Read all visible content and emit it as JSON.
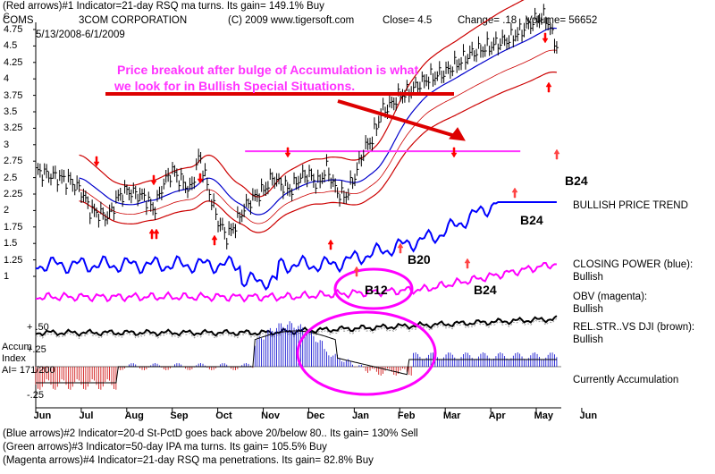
{
  "header": {
    "line1": "(Red arrows)#1 Indicator=21-day RSQ ma turns. Its gain= 149.1% Buy",
    "symbol": "COMS",
    "company": "3COM CORPORATION",
    "copyright": "(C) 2009 www.tigersoft.com",
    "close_label": "Close= 4.5",
    "change_label": "Change= .18",
    "volume_label": "Volume= 56652",
    "date_range": "5/13/2008-6/1/2009",
    "corner_mark": "C"
  },
  "annotation": {
    "line1": "Price breakout after bulge of Accumulation is what",
    "line2": "we look for in Bullish Special Situations."
  },
  "labels": {
    "b24_top": "B24",
    "b24_mid": "B24",
    "b24_low": "B24",
    "b20": "B20",
    "b12": "B12",
    "bullish_price_trend": "BULLISH PRICE TREND",
    "closing_power": "CLOSING POWER (blue):",
    "closing_power_state": "Bullish",
    "obv": "OBV (magenta):",
    "obv_state": "Bullish",
    "relstr": "REL.STR..VS DJI (brown):",
    "relstr_state": "Bullish",
    "accum_title1": "Accum",
    "accum_title2": "Index",
    "accum_ai": "AI= 171/200",
    "accum_p50": "+ .50",
    "accum_p25": "+.25",
    "accum_m25": "-.25",
    "currently_accum": "Currently Accumulation"
  },
  "footer": {
    "line1": "(Blue arrows)#2 Indicator=20-d St-PctD goes back above 20/below 80.. Its gain= 130% Sell",
    "line2": "(Green arrows)#3 Indicator=50-day IPA ma turns. Its gain= 105.5% Buy",
    "line3": "(Magenta arrows)#4 Indicator=21-day RSQ ma penetrations. Its gain= 82.8% Buy"
  },
  "colors": {
    "price": "#000000",
    "bands": "#cc0000",
    "ma": "#0000cc",
    "closing_power": "#0000ff",
    "obv": "#ff00ff",
    "relstr": "#663300",
    "resistance": "#ff33ff",
    "accum_pos": "#0000cc",
    "accum_neg": "#cc0000",
    "arrow": "#ff0000"
  },
  "chart_data": {
    "type": "line",
    "yticks": [
      "4.75",
      "4.5",
      "4.25",
      "4",
      "3.75",
      "3.5",
      "3.25",
      "3",
      "2.75",
      "2.5",
      "2.25",
      "2",
      "1.75",
      "1.5",
      "1.25",
      "1"
    ],
    "ylim": [
      1,
      4.75
    ],
    "months": [
      "Jun",
      "Jul",
      "Aug",
      "Sep",
      "Oct",
      "Nov",
      "Dec",
      "Jan",
      "Feb",
      "Mar",
      "Apr",
      "May",
      "Jun"
    ],
    "resistance_level": 2.9,
    "series": [
      {
        "name": "",
        "x": [
          0.0,
          0.25,
          0.5,
          0.75,
          1.0,
          1.2,
          1.4,
          1.6,
          1.8,
          2.0,
          2.2,
          2.4,
          2.6,
          2.8,
          3.0,
          3.2,
          3.4,
          3.6,
          3.8,
          4.0,
          4.2,
          4.4,
          4.6,
          4.8,
          5.0,
          5.2,
          5.4,
          5.6,
          5.8,
          6.0,
          6.2,
          6.4,
          6.6,
          6.8,
          7.0,
          7.2,
          7.4,
          7.6,
          7.8,
          8.0,
          8.2,
          8.4,
          8.6,
          8.8,
          9.0,
          9.2,
          9.4,
          9.6,
          9.8,
          10.0,
          10.2,
          10.4,
          10.6,
          10.8,
          11.0,
          11.2,
          11.45
        ],
        "values": [
          2.6,
          2.55,
          2.5,
          2.45,
          2.3,
          2.0,
          1.95,
          1.9,
          2.2,
          2.3,
          2.25,
          2.2,
          2.0,
          2.4,
          2.6,
          2.45,
          2.3,
          2.85,
          2.3,
          1.85,
          1.6,
          1.8,
          2.05,
          2.2,
          2.3,
          2.5,
          2.4,
          2.3,
          2.5,
          2.55,
          2.4,
          2.65,
          2.3,
          2.2,
          2.5,
          2.9,
          3.1,
          3.5,
          3.6,
          3.75,
          3.8,
          3.9,
          4.0,
          4.05,
          4.1,
          4.2,
          4.3,
          4.4,
          4.45,
          4.5,
          4.55,
          4.6,
          4.7,
          4.8,
          4.9,
          4.95,
          4.5
        ]
      }
    ]
  }
}
